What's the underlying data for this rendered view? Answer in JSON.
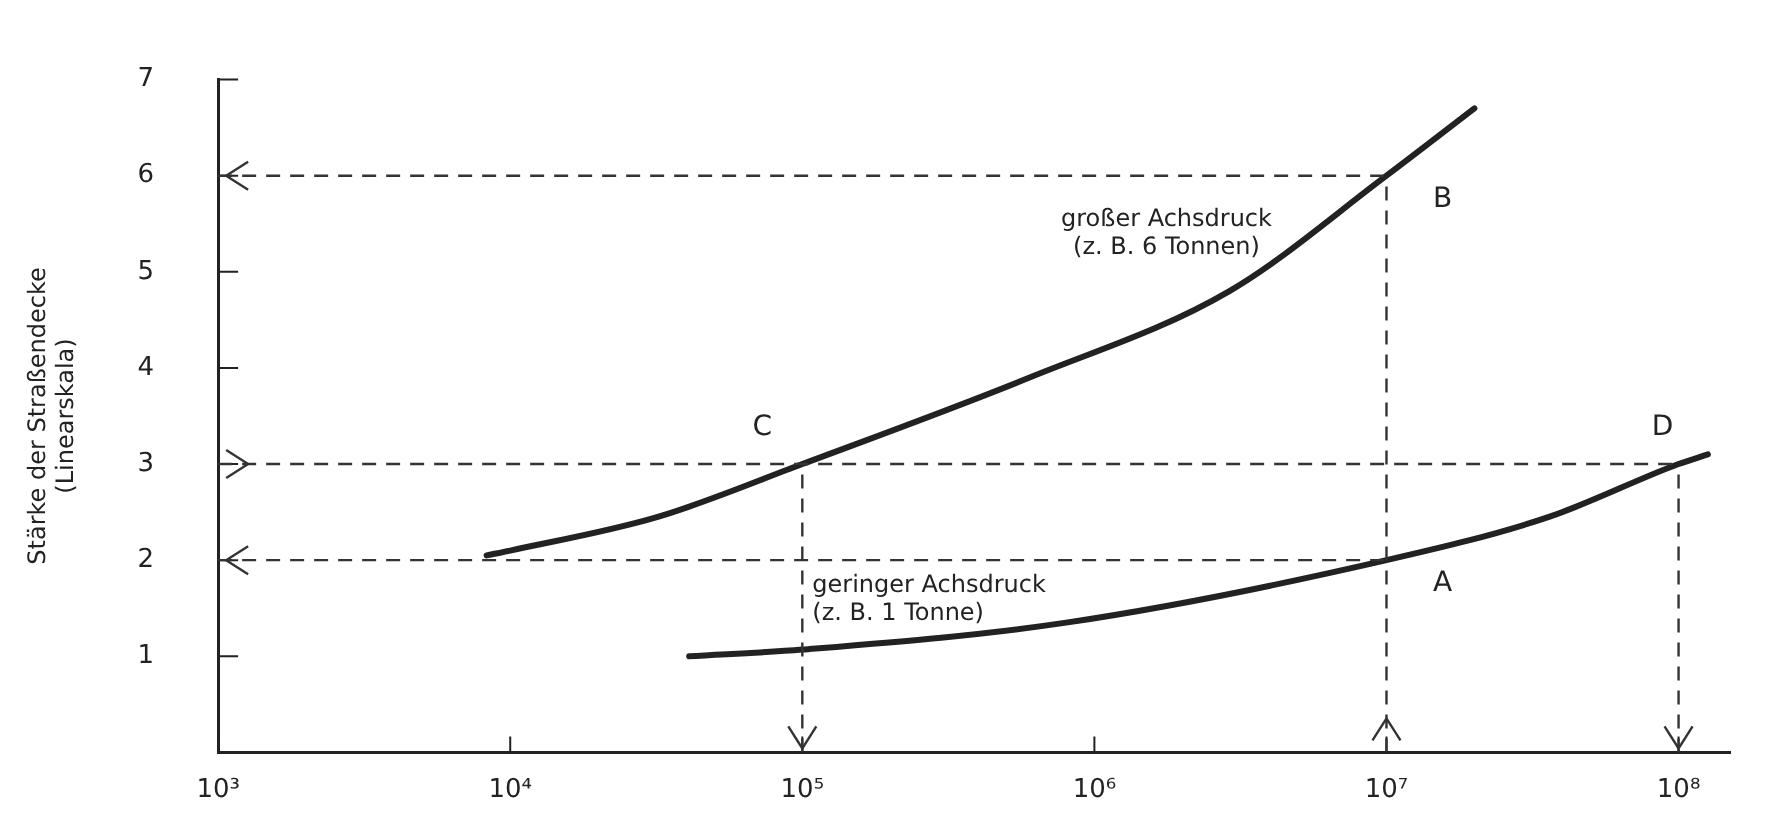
{
  "chart_data": {
    "type": "line",
    "ylabel": "Stärke der Straßendecke\n(Linearskala)",
    "log": "x",
    "xlim": [
      1000,
      150000000
    ],
    "xticks": [
      {
        "value": 1000,
        "label": "10³"
      },
      {
        "value": 10000,
        "label": "10⁴"
      },
      {
        "value": 100000,
        "label": "10⁵"
      },
      {
        "value": 1000000,
        "label": "10⁶"
      },
      {
        "value": 10000000,
        "label": "10⁷"
      },
      {
        "value": 100000000,
        "label": "10⁸"
      }
    ],
    "ylim": [
      0,
      7
    ],
    "yticks": [
      1,
      2,
      3,
      4,
      5,
      6,
      7
    ],
    "grid": false,
    "legend": false,
    "marker": "none",
    "line_style": "solid",
    "series": [
      {
        "name": "großer Achsdruck\n(z. B. 6 Tonnen)",
        "color": "#222222",
        "x": [
          8300,
          10000,
          32000,
          100000,
          600000,
          2900000,
          10000000,
          20000000
        ],
        "values": [
          2.05,
          2.1,
          2.45,
          3,
          3.9,
          4.8,
          6,
          6.7
        ]
      },
      {
        "name": "geringer Achsdruck\n(z. B. 1 Tonne)",
        "color": "#222222",
        "x": [
          41000,
          100000,
          800000,
          10000000,
          36000000,
          100000000,
          126000000
        ],
        "values": [
          1,
          1.07,
          1.35,
          2,
          2.45,
          3,
          3.1
        ]
      }
    ],
    "ref_lines": [
      {
        "axis": "y",
        "value": 6,
        "color": "#333333",
        "line_style": "dashed"
      },
      {
        "axis": "y",
        "value": 3,
        "color": "#333333",
        "line_style": "dashed"
      },
      {
        "axis": "y",
        "value": 2,
        "color": "#333333",
        "line_style": "dashed"
      },
      {
        "axis": "x",
        "value": 100000,
        "color": "#333333",
        "line_style": "dashed"
      },
      {
        "axis": "x",
        "value": 10000000,
        "color": "#333333",
        "line_style": "dashed"
      },
      {
        "axis": "x",
        "value": 100000000,
        "color": "#333333",
        "line_style": "dashed"
      }
    ],
    "annotations": [
      {
        "text": "A",
        "x": 10000000,
        "y": 2
      },
      {
        "text": "B",
        "x": 10000000,
        "y": 6
      },
      {
        "text": "C",
        "x": 100000,
        "y": 3
      },
      {
        "text": "D",
        "x": 100000000,
        "y": 3
      }
    ]
  }
}
